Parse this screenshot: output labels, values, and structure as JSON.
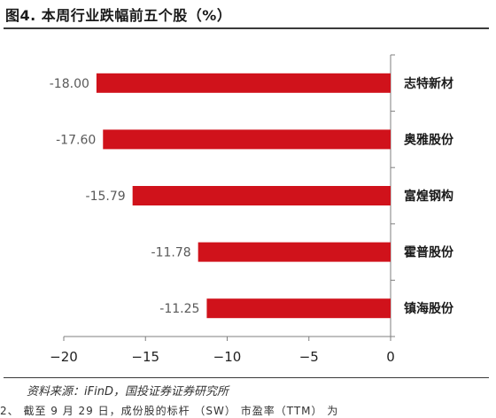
{
  "header": {
    "figure_title": "图4. 本周行业跌幅前五个股（%）"
  },
  "footer": {
    "source": "资料来源：iFinD，国投证券证券研究所",
    "truncated_text": "2、 截至 9 月 29 日，成份股的标杆 （SW） 市盈率（TTM） 为"
  },
  "chart_data": {
    "type": "bar",
    "orientation": "horizontal",
    "categories": [
      "志特新材",
      "奥雅股份",
      "富煌钢构",
      "霍普股份",
      "镇海股份"
    ],
    "values": [
      -18.0,
      -17.6,
      -15.79,
      -11.78,
      -11.25
    ],
    "value_labels": [
      "-18.00",
      "-17.60",
      "-15.79",
      "-11.78",
      "-11.25"
    ],
    "xlim": [
      -20,
      0
    ],
    "xticks": [
      -20,
      -15,
      -10,
      -5,
      0
    ],
    "title": "",
    "xlabel": "",
    "ylabel": "",
    "bar_color": "#d0121b",
    "grid": false,
    "legend": "none"
  }
}
